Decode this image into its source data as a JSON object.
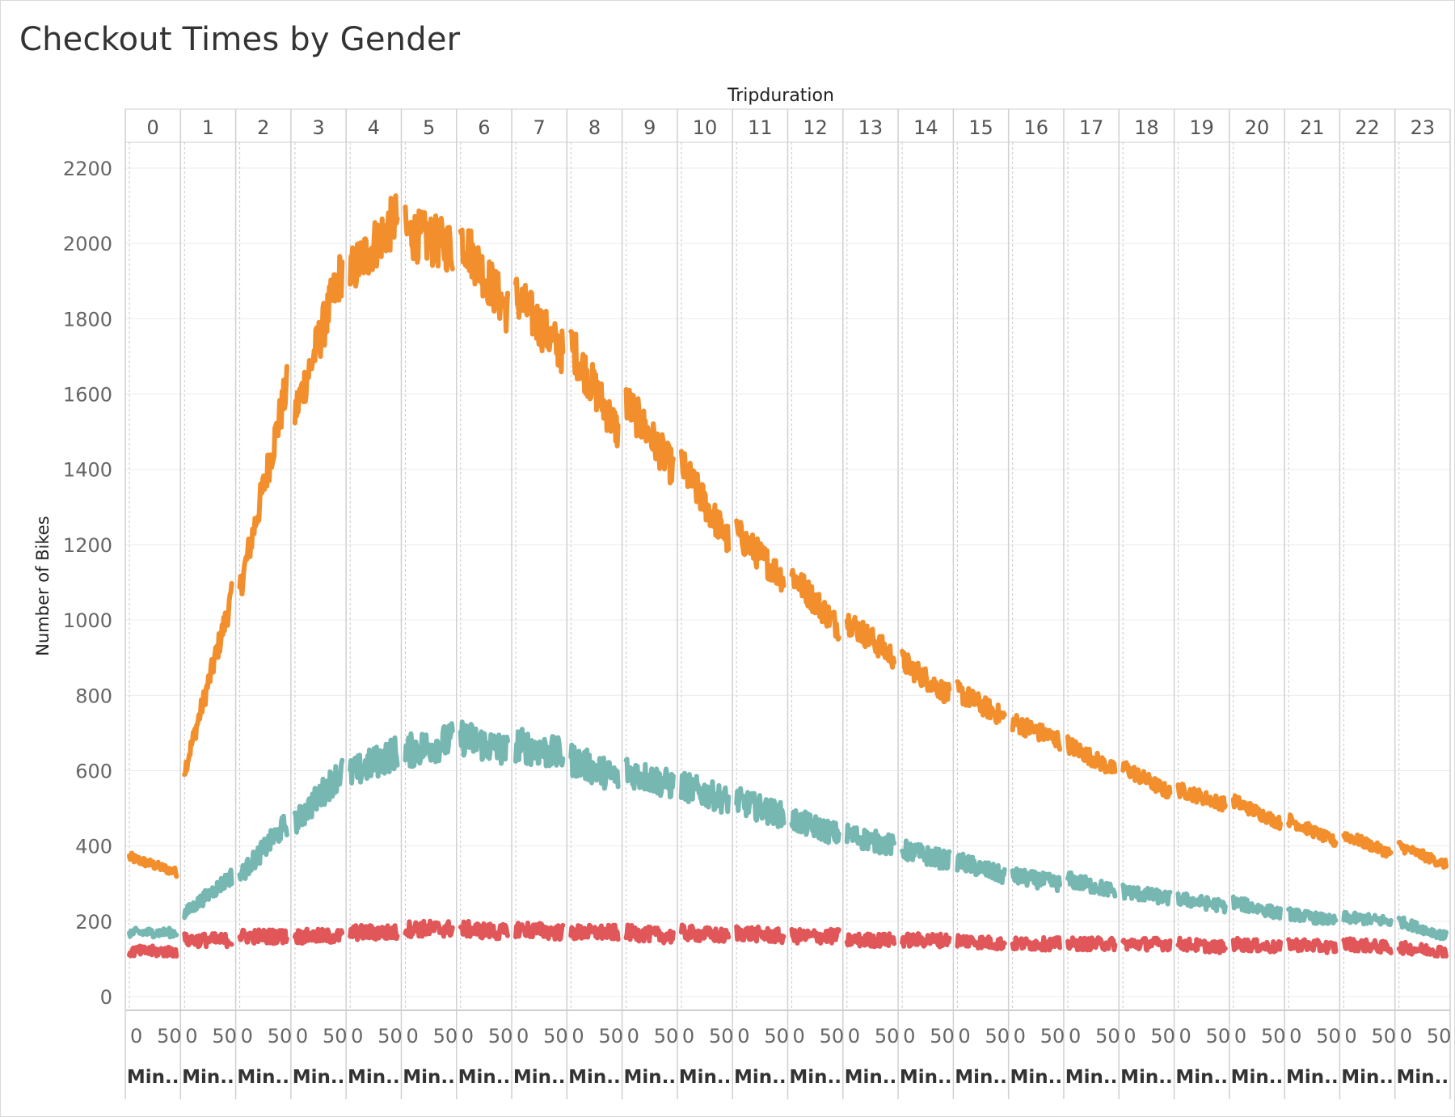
{
  "chart_data": {
    "type": "line",
    "title": "Checkout Times by Gender",
    "column_header": "Tripduration",
    "ylabel": "Number of Bikes",
    "ylim": [
      0,
      2200
    ],
    "y_ticks": [
      0,
      200,
      400,
      600,
      800,
      1000,
      1200,
      1400,
      1600,
      1800,
      2000,
      2200
    ],
    "panels": [
      "0",
      "1",
      "2",
      "3",
      "4",
      "5",
      "6",
      "7",
      "8",
      "9",
      "10",
      "11",
      "12",
      "13",
      "14",
      "15",
      "16",
      "17",
      "18",
      "19",
      "20",
      "21",
      "22",
      "23"
    ],
    "x_tick_labels": [
      "0",
      "50"
    ],
    "x_axis_label": "Min..",
    "x_range": [
      0,
      59
    ],
    "grid": true,
    "legend": "none",
    "series": [
      {
        "color": "#f28e2b",
        "panel_start": [
          370,
          600,
          1080,
          1550,
          1920,
          2030,
          2020,
          1860,
          1730,
          1580,
          1410,
          1230,
          1120,
          1000,
          890,
          810,
          730,
          670,
          610,
          550,
          520,
          470,
          430,
          400
        ],
        "panel_end": [
          330,
          1060,
          1620,
          1930,
          2070,
          1990,
          1820,
          1710,
          1500,
          1400,
          1210,
          1110,
          980,
          900,
          800,
          740,
          680,
          600,
          540,
          510,
          460,
          410,
          380,
          350
        ]
      },
      {
        "color": "#76b7b2",
        "panel_start": [
          170,
          220,
          320,
          460,
          590,
          650,
          690,
          670,
          630,
          600,
          560,
          520,
          470,
          430,
          390,
          360,
          320,
          310,
          280,
          260,
          250,
          220,
          210,
          200
        ],
        "panel_end": [
          170,
          320,
          460,
          600,
          650,
          680,
          650,
          640,
          580,
          560,
          520,
          480,
          430,
          400,
          360,
          320,
          300,
          280,
          260,
          240,
          220,
          200,
          200,
          160
        ]
      },
      {
        "color": "#e15759",
        "panel_start": [
          120,
          150,
          160,
          160,
          170,
          180,
          180,
          180,
          170,
          170,
          170,
          170,
          160,
          150,
          150,
          150,
          140,
          140,
          140,
          140,
          140,
          140,
          140,
          130
        ],
        "panel_end": [
          120,
          150,
          160,
          160,
          170,
          180,
          170,
          170,
          170,
          160,
          160,
          160,
          160,
          150,
          150,
          140,
          140,
          140,
          140,
          130,
          130,
          130,
          130,
          120
        ]
      }
    ]
  }
}
